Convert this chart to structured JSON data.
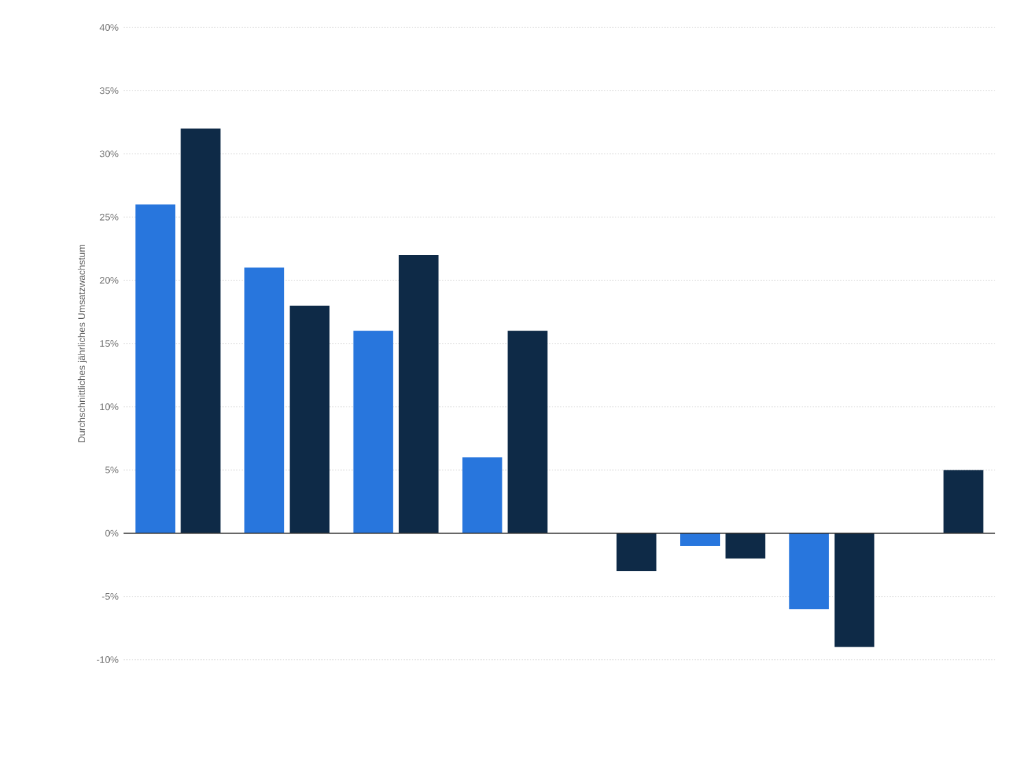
{
  "chart_data": {
    "type": "bar",
    "ylabel": "Durchschnittliches jährliches Umsatzwachstum",
    "categories": [
      null,
      null,
      null,
      null,
      null,
      null,
      null,
      null
    ],
    "series": [
      {
        "color": "#2876dd",
        "values": [
          26,
          21,
          16,
          6,
          null,
          -1,
          -6,
          null
        ]
      },
      {
        "color": "#0e2a47",
        "values": [
          32,
          18,
          22,
          16,
          -3,
          -2,
          -9,
          5
        ]
      }
    ],
    "ylim": [
      -10,
      40
    ],
    "yticks": [
      {
        "value": -10,
        "label": "-10%"
      },
      {
        "value": -5,
        "label": "-5%"
      },
      {
        "value": 0,
        "label": "0%"
      },
      {
        "value": 5,
        "label": "5%"
      },
      {
        "value": 10,
        "label": "10%"
      },
      {
        "value": 15,
        "label": "15%"
      },
      {
        "value": 20,
        "label": "20%"
      },
      {
        "value": 25,
        "label": "25%"
      },
      {
        "value": 30,
        "label": "30%"
      },
      {
        "value": 35,
        "label": "35%"
      },
      {
        "value": 40,
        "label": "40%"
      }
    ],
    "grid": "y",
    "tick_labels": "y"
  }
}
